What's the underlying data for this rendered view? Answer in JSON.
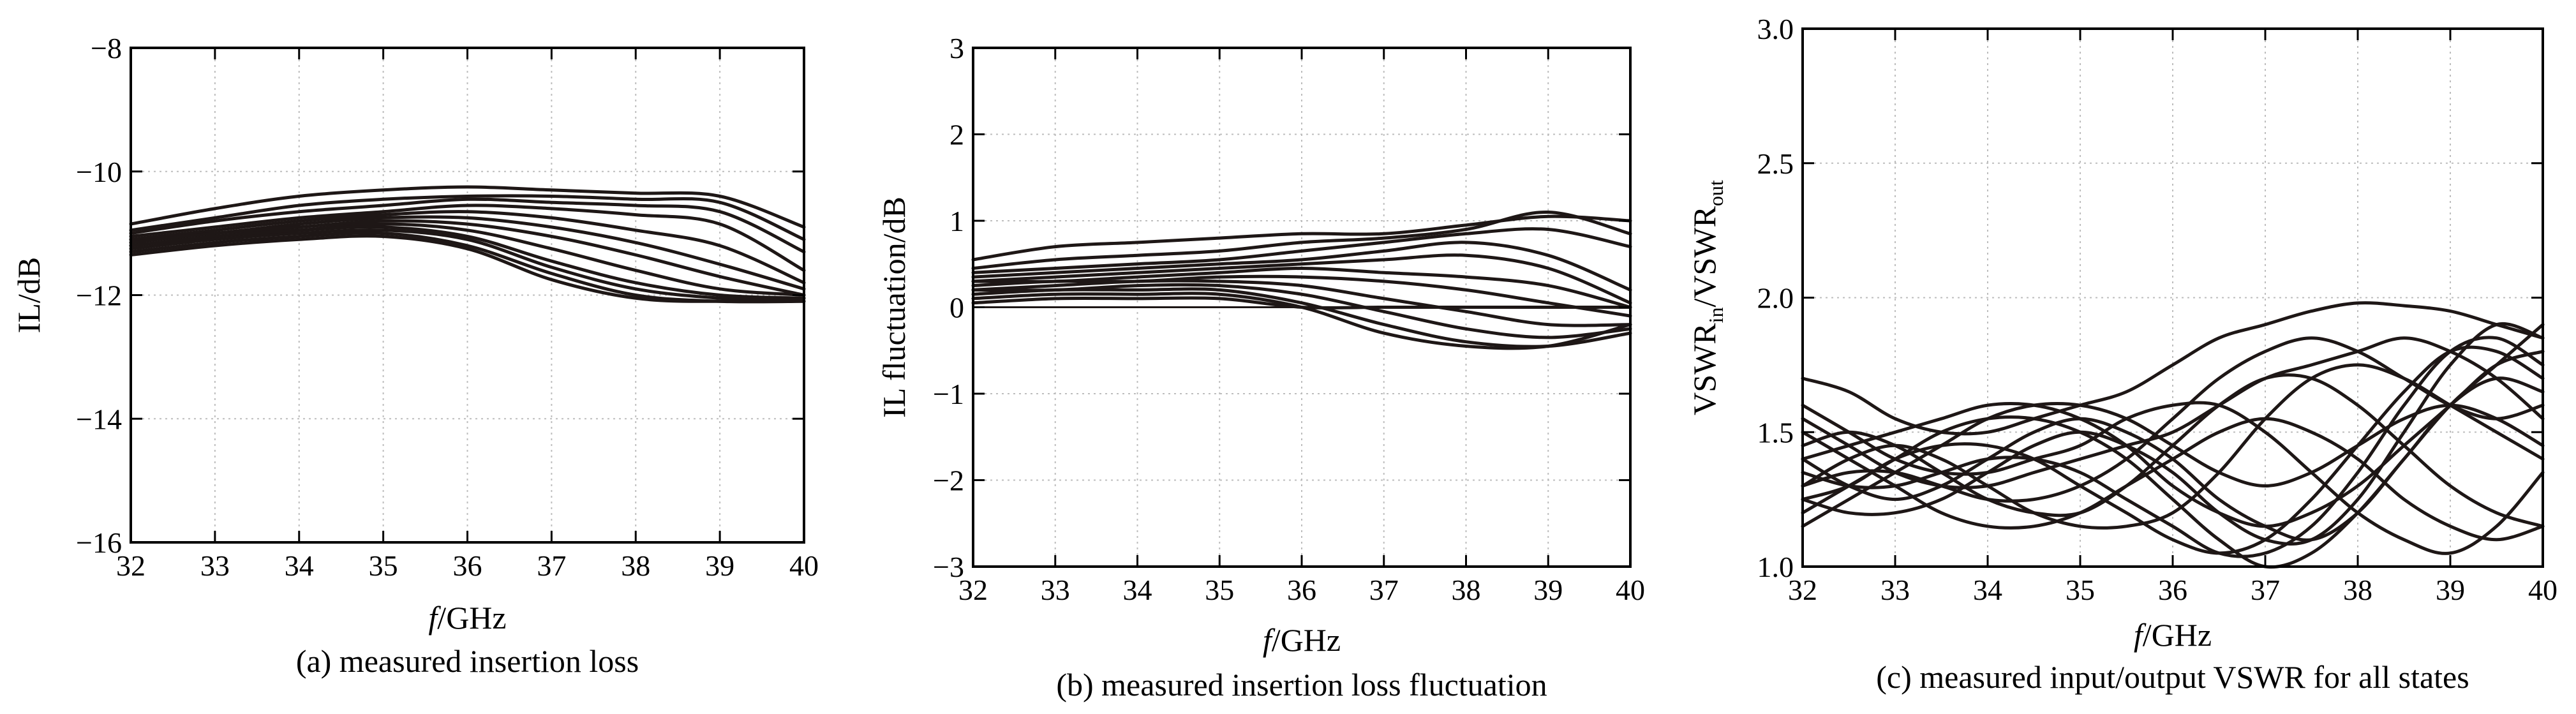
{
  "chart_data": [
    {
      "id": "a",
      "type": "line",
      "caption": "(a) measured insertion loss",
      "xlabel_italic": "f",
      "xlabel_rest": "/GHz",
      "ylabel": "IL/dB",
      "xlim": [
        32,
        40
      ],
      "ylim": [
        -16,
        -8
      ],
      "xticks": [
        32,
        33,
        34,
        35,
        36,
        37,
        38,
        39,
        40
      ],
      "yticks": [
        -16,
        -14,
        -12,
        -10,
        -8
      ],
      "ytick_labels": [
        "−16",
        "−14",
        "−12",
        "−10",
        "−8"
      ],
      "grid": true,
      "x": [
        32,
        33,
        34,
        35,
        36,
        37,
        38,
        39,
        40
      ],
      "series": [
        {
          "values": [
            -10.85,
            -10.6,
            -10.4,
            -10.3,
            -10.25,
            -10.3,
            -10.35,
            -10.4,
            -10.9
          ]
        },
        {
          "values": [
            -10.95,
            -10.75,
            -10.55,
            -10.45,
            -10.4,
            -10.4,
            -10.45,
            -10.5,
            -11.1
          ]
        },
        {
          "values": [
            -11.0,
            -10.8,
            -10.65,
            -10.55,
            -10.45,
            -10.5,
            -10.55,
            -10.65,
            -11.3
          ]
        },
        {
          "values": [
            -11.05,
            -10.9,
            -10.75,
            -10.65,
            -10.55,
            -10.6,
            -10.7,
            -10.85,
            -11.6
          ]
        },
        {
          "values": [
            -11.1,
            -10.95,
            -10.8,
            -10.7,
            -10.65,
            -10.75,
            -10.95,
            -11.2,
            -11.8
          ]
        },
        {
          "values": [
            -11.1,
            -11.0,
            -10.85,
            -10.75,
            -10.75,
            -10.9,
            -11.15,
            -11.5,
            -11.9
          ]
        },
        {
          "values": [
            -11.15,
            -11.0,
            -10.9,
            -10.8,
            -10.85,
            -11.05,
            -11.35,
            -11.7,
            -12.0
          ]
        },
        {
          "values": [
            -11.2,
            -11.05,
            -10.95,
            -10.85,
            -10.95,
            -11.25,
            -11.6,
            -11.9,
            -12.0
          ]
        },
        {
          "values": [
            -11.2,
            -11.05,
            -10.95,
            -10.9,
            -11.05,
            -11.45,
            -11.8,
            -12.0,
            -12.05
          ]
        },
        {
          "values": [
            -11.25,
            -11.1,
            -11.0,
            -10.95,
            -11.1,
            -11.55,
            -11.9,
            -12.05,
            -12.1
          ]
        },
        {
          "values": [
            -11.3,
            -11.15,
            -11.05,
            -11.0,
            -11.2,
            -11.65,
            -12.0,
            -12.1,
            -12.1
          ]
        },
        {
          "values": [
            -11.35,
            -11.2,
            -11.1,
            -11.05,
            -11.25,
            -11.75,
            -12.05,
            -12.1,
            -12.05
          ]
        }
      ]
    },
    {
      "id": "b",
      "type": "line",
      "caption": "(b) measured insertion loss fluctuation",
      "xlabel_italic": "f",
      "xlabel_rest": "/GHz",
      "ylabel": "IL fluctuation/dB",
      "xlim": [
        32,
        40
      ],
      "ylim": [
        -3,
        3
      ],
      "xticks": [
        32,
        33,
        34,
        35,
        36,
        37,
        38,
        39,
        40
      ],
      "yticks": [
        -3,
        -2,
        -1,
        0,
        1,
        2,
        3
      ],
      "ytick_labels": [
        "−3",
        "−2",
        "−1",
        "0",
        "1",
        "2",
        "3"
      ],
      "grid": true,
      "x": [
        32,
        33,
        34,
        35,
        36,
        37,
        38,
        39,
        40
      ],
      "series": [
        {
          "values": [
            0.55,
            0.7,
            0.75,
            0.8,
            0.85,
            0.85,
            0.95,
            1.05,
            1.0
          ]
        },
        {
          "values": [
            0.45,
            0.55,
            0.6,
            0.65,
            0.75,
            0.8,
            0.9,
            1.1,
            0.85
          ]
        },
        {
          "values": [
            0.4,
            0.45,
            0.5,
            0.55,
            0.65,
            0.75,
            0.85,
            0.9,
            0.7
          ]
        },
        {
          "values": [
            0.35,
            0.4,
            0.45,
            0.5,
            0.55,
            0.65,
            0.75,
            0.6,
            0.2
          ]
        },
        {
          "values": [
            0.3,
            0.35,
            0.4,
            0.45,
            0.5,
            0.55,
            0.6,
            0.45,
            0.05
          ]
        },
        {
          "values": [
            0.3,
            0.3,
            0.35,
            0.4,
            0.45,
            0.4,
            0.35,
            0.25,
            0.0
          ]
        },
        {
          "values": [
            0.25,
            0.3,
            0.3,
            0.35,
            0.35,
            0.3,
            0.2,
            0.05,
            -0.1
          ]
        },
        {
          "values": [
            0.2,
            0.25,
            0.3,
            0.3,
            0.25,
            0.1,
            -0.05,
            -0.2,
            -0.2
          ]
        },
        {
          "values": [
            0.2,
            0.2,
            0.25,
            0.25,
            0.15,
            -0.05,
            -0.25,
            -0.35,
            -0.25
          ]
        },
        {
          "values": [
            0.15,
            0.2,
            0.2,
            0.2,
            0.05,
            -0.2,
            -0.4,
            -0.45,
            -0.3
          ]
        },
        {
          "values": [
            0.1,
            0.15,
            0.15,
            0.15,
            0.0,
            -0.3,
            -0.45,
            -0.45,
            -0.2
          ]
        },
        {
          "values": [
            0.05,
            0.1,
            0.1,
            0.1,
            0.0,
            0.0,
            0.0,
            0.0,
            0.0
          ]
        }
      ]
    },
    {
      "id": "c",
      "type": "line",
      "caption": "(c) measured input/output VSWR for all states",
      "xlabel_italic": "f",
      "xlabel_rest": "/GHz",
      "ylabel_main": "VSWR",
      "ylabel_sub1": "in",
      "ylabel_mid": "/VSWR",
      "ylabel_sub2": "out",
      "xlim": [
        32,
        40
      ],
      "ylim": [
        1.0,
        3.0
      ],
      "xticks": [
        32,
        33,
        34,
        35,
        36,
        37,
        38,
        39,
        40
      ],
      "yticks": [
        1.0,
        1.5,
        2.0,
        2.5,
        3.0
      ],
      "ytick_labels": [
        "1.0",
        "1.5",
        "2.0",
        "2.5",
        "3.0"
      ],
      "grid": true,
      "x": [
        32,
        32.5,
        33,
        33.5,
        34,
        34.5,
        35,
        35.5,
        36,
        36.5,
        37,
        37.5,
        38,
        38.5,
        39,
        39.5,
        40
      ],
      "series": [
        {
          "values": [
            1.7,
            1.65,
            1.55,
            1.5,
            1.5,
            1.55,
            1.6,
            1.65,
            1.75,
            1.85,
            1.9,
            1.95,
            1.98,
            1.97,
            1.95,
            1.9,
            1.85
          ]
        },
        {
          "values": [
            1.55,
            1.45,
            1.35,
            1.3,
            1.3,
            1.35,
            1.4,
            1.45,
            1.5,
            1.6,
            1.7,
            1.75,
            1.8,
            1.85,
            1.8,
            1.7,
            1.55
          ]
        },
        {
          "values": [
            1.15,
            1.25,
            1.35,
            1.45,
            1.55,
            1.6,
            1.6,
            1.55,
            1.45,
            1.35,
            1.3,
            1.35,
            1.45,
            1.55,
            1.6,
            1.55,
            1.45
          ]
        },
        {
          "values": [
            1.4,
            1.3,
            1.25,
            1.3,
            1.4,
            1.5,
            1.55,
            1.5,
            1.4,
            1.25,
            1.15,
            1.1,
            1.2,
            1.4,
            1.6,
            1.75,
            1.9
          ]
        },
        {
          "values": [
            1.3,
            1.4,
            1.45,
            1.4,
            1.3,
            1.2,
            1.15,
            1.15,
            1.2,
            1.35,
            1.55,
            1.7,
            1.75,
            1.7,
            1.6,
            1.5,
            1.4
          ]
        },
        {
          "values": [
            1.45,
            1.5,
            1.45,
            1.35,
            1.25,
            1.2,
            1.2,
            1.3,
            1.45,
            1.6,
            1.7,
            1.7,
            1.6,
            1.45,
            1.3,
            1.2,
            1.15
          ]
        },
        {
          "values": [
            1.25,
            1.2,
            1.2,
            1.25,
            1.35,
            1.45,
            1.5,
            1.45,
            1.35,
            1.2,
            1.1,
            1.1,
            1.25,
            1.5,
            1.75,
            1.9,
            1.85
          ]
        },
        {
          "values": [
            1.35,
            1.3,
            1.3,
            1.35,
            1.4,
            1.4,
            1.35,
            1.25,
            1.15,
            1.05,
            1.05,
            1.15,
            1.35,
            1.6,
            1.8,
            1.85,
            1.75
          ]
        },
        {
          "values": [
            1.2,
            1.3,
            1.4,
            1.5,
            1.55,
            1.55,
            1.5,
            1.4,
            1.25,
            1.1,
            1.0,
            1.05,
            1.2,
            1.4,
            1.6,
            1.7,
            1.65
          ]
        },
        {
          "values": [
            1.5,
            1.4,
            1.3,
            1.2,
            1.15,
            1.15,
            1.2,
            1.3,
            1.4,
            1.5,
            1.55,
            1.5,
            1.4,
            1.25,
            1.15,
            1.1,
            1.15
          ]
        },
        {
          "values": [
            1.3,
            1.35,
            1.35,
            1.3,
            1.25,
            1.25,
            1.3,
            1.4,
            1.55,
            1.7,
            1.8,
            1.85,
            1.8,
            1.7,
            1.6,
            1.55,
            1.6
          ]
        },
        {
          "values": [
            1.4,
            1.45,
            1.5,
            1.55,
            1.6,
            1.6,
            1.55,
            1.45,
            1.3,
            1.2,
            1.15,
            1.2,
            1.3,
            1.45,
            1.6,
            1.75,
            1.8
          ]
        },
        {
          "values": [
            1.6,
            1.5,
            1.4,
            1.35,
            1.35,
            1.4,
            1.45,
            1.55,
            1.6,
            1.6,
            1.5,
            1.35,
            1.2,
            1.1,
            1.05,
            1.15,
            1.35
          ]
        },
        {
          "values": [
            1.25,
            1.3,
            1.4,
            1.45,
            1.45,
            1.4,
            1.3,
            1.2,
            1.1,
            1.05,
            1.1,
            1.25,
            1.45,
            1.65,
            1.8,
            1.8,
            1.7
          ]
        }
      ]
    }
  ]
}
